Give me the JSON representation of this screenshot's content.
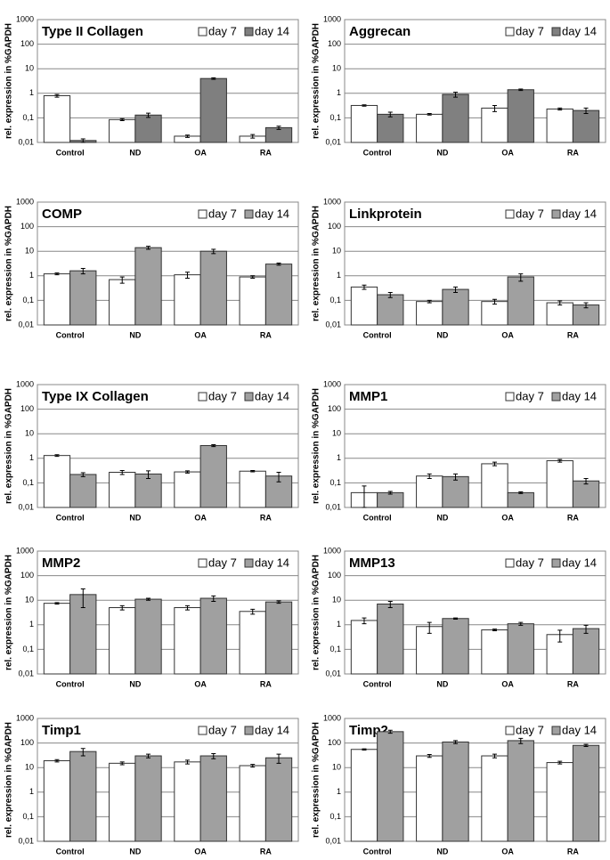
{
  "chart_data": [
    {
      "type": "bar",
      "title": "Type II Collagen",
      "ylabel": "rel. expression in %GAPDH",
      "categories": [
        "Control",
        "ND",
        "OA",
        "RA"
      ],
      "series": [
        {
          "name": "day 7",
          "color": "#ffffff",
          "values": [
            0.8,
            0.085,
            0.018,
            0.018
          ],
          "errors": [
            0.1,
            0.008,
            0.002,
            0.003
          ]
        },
        {
          "name": "day 14",
          "color": "#7f7f7f",
          "values": [
            0.012,
            0.13,
            4,
            0.04
          ],
          "errors": [
            0.002,
            0.025,
            0.3,
            0.006
          ]
        }
      ],
      "ylim": [
        0.01,
        1000
      ],
      "yticks": [
        {
          "value": 0.01,
          "label": "0,01"
        },
        {
          "value": 0.1,
          "label": "0,1"
        },
        1,
        10,
        100,
        1000
      ],
      "log_scale": true,
      "grid": true
    },
    {
      "type": "bar",
      "title": "Aggrecan",
      "ylabel": "rel. expression in %GAPDH",
      "categories": [
        "Control",
        "ND",
        "OA",
        "RA"
      ],
      "series": [
        {
          "name": "day 7",
          "color": "#ffffff",
          "values": [
            0.32,
            0.14,
            0.25,
            0.23
          ],
          "errors": [
            0.02,
            0.01,
            0.07,
            0.02
          ]
        },
        {
          "name": "day 14",
          "color": "#808080",
          "values": [
            0.14,
            0.9,
            1.4,
            0.2
          ],
          "errors": [
            0.03,
            0.2,
            0.1,
            0.05
          ]
        }
      ],
      "ylim": [
        0.01,
        1000
      ],
      "yticks": [
        {
          "value": 0.01,
          "label": "0,01"
        },
        {
          "value": 0.1,
          "label": "0,1"
        },
        1,
        10,
        100,
        1000
      ],
      "log_scale": true,
      "grid": true
    },
    {
      "type": "bar",
      "title": "COMP",
      "ylabel": "rel. expression in %GAPDH",
      "categories": [
        "Control",
        "ND",
        "OA",
        "RA"
      ],
      "series": [
        {
          "name": "day 7",
          "color": "#ffffff",
          "values": [
            1.2,
            0.7,
            1.1,
            0.9
          ],
          "errors": [
            0.1,
            0.2,
            0.3,
            0.1
          ]
        },
        {
          "name": "day 14",
          "color": "#a0a0a0",
          "values": [
            1.6,
            14,
            10,
            3
          ],
          "errors": [
            0.4,
            2,
            2,
            0.3
          ]
        }
      ],
      "ylim": [
        0.01,
        1000
      ],
      "yticks": [
        {
          "value": 0.01,
          "label": "0,01"
        },
        {
          "value": 0.1,
          "label": "0,1"
        },
        1,
        10,
        100,
        1000
      ],
      "log_scale": true,
      "grid": true
    },
    {
      "type": "bar",
      "title": "Linkprotein",
      "ylabel": "rel. expression in %GAPDH",
      "categories": [
        "Control",
        "ND",
        "OA",
        "RA"
      ],
      "series": [
        {
          "name": "day 7",
          "color": "#ffffff",
          "values": [
            0.35,
            0.09,
            0.09,
            0.08
          ],
          "errors": [
            0.07,
            0.01,
            0.02,
            0.015
          ]
        },
        {
          "name": "day 14",
          "color": "#a0a0a0",
          "values": [
            0.17,
            0.28,
            0.9,
            0.065
          ],
          "errors": [
            0.04,
            0.07,
            0.3,
            0.015
          ]
        }
      ],
      "ylim": [
        0.01,
        1000
      ],
      "yticks": [
        {
          "value": 0.01,
          "label": "0,01"
        },
        {
          "value": 0.1,
          "label": "0,1"
        },
        1,
        10,
        100,
        1000
      ],
      "log_scale": true,
      "grid": true
    },
    {
      "type": "bar",
      "title": "Type IX Collagen",
      "ylabel": "rel. expression in %GAPDH",
      "categories": [
        "Control",
        "ND",
        "OA",
        "RA"
      ],
      "series": [
        {
          "name": "day 7",
          "color": "#ffffff",
          "values": [
            1.3,
            0.27,
            0.28,
            0.3
          ],
          "errors": [
            0.1,
            0.05,
            0.03,
            0.02
          ]
        },
        {
          "name": "day 14",
          "color": "#a0a0a0",
          "values": [
            0.22,
            0.23,
            3.3,
            0.19
          ],
          "errors": [
            0.04,
            0.08,
            0.3,
            0.08
          ]
        }
      ],
      "ylim": [
        0.01,
        1000
      ],
      "yticks": [
        {
          "value": 0.01,
          "label": "0,01"
        },
        {
          "value": 0.1,
          "label": "0,1"
        },
        1,
        10,
        100,
        1000
      ],
      "log_scale": true,
      "grid": true
    },
    {
      "type": "bar",
      "title": "MMP1",
      "ylabel": "rel. expression in %GAPDH",
      "categories": [
        "Control",
        "ND",
        "OA",
        "RA"
      ],
      "series": [
        {
          "name": "day 7",
          "color": "#ffffff",
          "values": [
            0.04,
            0.19,
            0.6,
            0.8
          ],
          "errors": [
            0.035,
            0.04,
            0.1,
            0.1
          ]
        },
        {
          "name": "day 14",
          "color": "#a0a0a0",
          "values": [
            0.04,
            0.18,
            0.04,
            0.12
          ],
          "errors": [
            0.005,
            0.05,
            0.003,
            0.03
          ]
        }
      ],
      "ylim": [
        0.01,
        1000
      ],
      "yticks": [
        {
          "value": 0.01,
          "label": "0,01"
        },
        {
          "value": 0.1,
          "label": "0,1"
        },
        1,
        10,
        100,
        1000
      ],
      "log_scale": true,
      "grid": true
    },
    {
      "type": "bar",
      "title": "MMP2",
      "ylabel": "rel. expression in %GAPDH",
      "categories": [
        "Control",
        "ND",
        "OA",
        "RA"
      ],
      "series": [
        {
          "name": "day 7",
          "color": "#ffffff",
          "values": [
            7.5,
            5,
            5,
            3.5
          ],
          "errors": [
            0.5,
            1,
            1,
            0.8
          ]
        },
        {
          "name": "day 14",
          "color": "#a0a0a0",
          "values": [
            17,
            11,
            12,
            8.5
          ],
          "errors": [
            12,
            1,
            3,
            1
          ]
        }
      ],
      "ylim": [
        0.01,
        1000
      ],
      "yticks": [
        {
          "value": 0.01,
          "label": "0,01"
        },
        {
          "value": 0.1,
          "label": "0,1"
        },
        1,
        10,
        100,
        1000
      ],
      "log_scale": true,
      "grid": true
    },
    {
      "type": "bar",
      "title": "MMP13",
      "ylabel": "rel. expression in %GAPDH",
      "categories": [
        "Control",
        "ND",
        "OA",
        "RA"
      ],
      "series": [
        {
          "name": "day 7",
          "color": "#ffffff",
          "values": [
            1.5,
            0.85,
            0.62,
            0.4
          ],
          "errors": [
            0.4,
            0.4,
            0.05,
            0.2
          ]
        },
        {
          "name": "day 14",
          "color": "#a0a0a0",
          "values": [
            7,
            1.8,
            1.1,
            0.7
          ],
          "errors": [
            2,
            0.1,
            0.15,
            0.25
          ]
        }
      ],
      "ylim": [
        0.01,
        1000
      ],
      "yticks": [
        {
          "value": 0.01,
          "label": "0,01"
        },
        {
          "value": 0.1,
          "label": "0,1"
        },
        1,
        10,
        100,
        1000
      ],
      "log_scale": true,
      "grid": true
    },
    {
      "type": "bar",
      "title": "Timp1",
      "ylabel": "rel. expression in %GAPDH",
      "categories": [
        "Control",
        "ND",
        "OA",
        "RA"
      ],
      "series": [
        {
          "name": "day 7",
          "color": "#ffffff",
          "values": [
            19,
            15,
            17,
            12
          ],
          "errors": [
            2,
            2,
            3,
            1.5
          ]
        },
        {
          "name": "day 14",
          "color": "#a0a0a0",
          "values": [
            45,
            30,
            30,
            25
          ],
          "errors": [
            15,
            5,
            7,
            10
          ]
        }
      ],
      "ylim": [
        0.01,
        1000
      ],
      "yticks": [
        {
          "value": 0.01,
          "label": "0,01"
        },
        {
          "value": 0.1,
          "label": "0,1"
        },
        1,
        10,
        100,
        1000
      ],
      "log_scale": true,
      "grid": true
    },
    {
      "type": "bar",
      "title": "Timp2",
      "ylabel": "rel. expression in %GAPDH",
      "categories": [
        "Control",
        "ND",
        "OA",
        "RA"
      ],
      "series": [
        {
          "name": "day 7",
          "color": "#ffffff",
          "values": [
            55,
            30,
            30,
            16
          ],
          "errors": [
            3,
            4,
            5,
            2
          ]
        },
        {
          "name": "day 14",
          "color": "#a0a0a0",
          "values": [
            290,
            110,
            125,
            80
          ],
          "errors": [
            40,
            15,
            30,
            8
          ]
        }
      ],
      "ylim": [
        0.01,
        1000
      ],
      "yticks": [
        {
          "value": 0.01,
          "label": "0,01"
        },
        {
          "value": 0.1,
          "label": "0,1"
        },
        1,
        10,
        100,
        1000
      ],
      "log_scale": true,
      "grid": true
    }
  ]
}
